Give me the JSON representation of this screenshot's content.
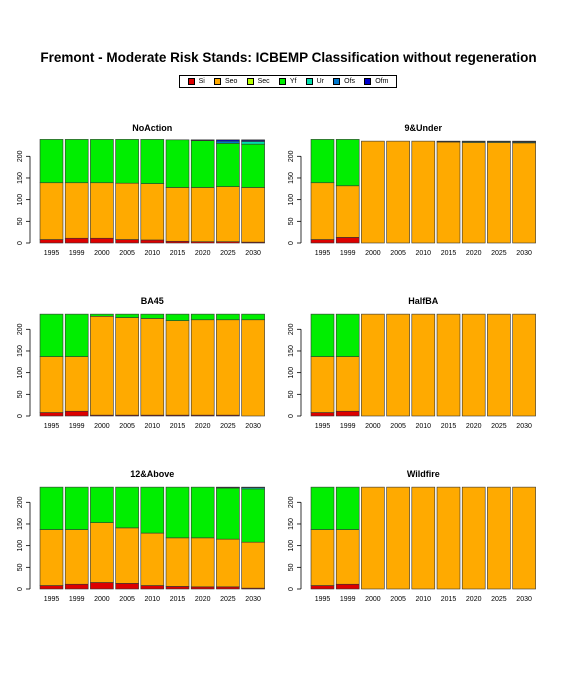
{
  "title": "Fremont  - Moderate Risk Stands: ICBEMP Classification without regeneration",
  "legend": [
    {
      "label": "Si",
      "color": "#dd0000"
    },
    {
      "label": "Seo",
      "color": "#ffaa00"
    },
    {
      "label": "Sec",
      "color": "#b6ff00"
    },
    {
      "label": "Yf",
      "color": "#00ee00"
    },
    {
      "label": "Ur",
      "color": "#00ddaa"
    },
    {
      "label": "Ofs",
      "color": "#0077cc"
    },
    {
      "label": "Ofm",
      "color": "#0000cc"
    }
  ],
  "chart_data": [
    {
      "type": "bar",
      "stacked": true,
      "title": "NoAction",
      "categories": [
        "1995",
        "1999",
        "2000",
        "2005",
        "2010",
        "2015",
        "2020",
        "2025",
        "2030"
      ],
      "ylim": [
        0,
        235
      ],
      "yticks": [
        0,
        50,
        100,
        150,
        200
      ],
      "series": [
        {
          "name": "Si",
          "values": [
            8,
            11,
            11,
            8,
            7,
            4,
            3,
            3,
            2
          ]
        },
        {
          "name": "Seo",
          "values": [
            131,
            128,
            128,
            130,
            130,
            124,
            125,
            127,
            126
          ]
        },
        {
          "name": "Sec",
          "values": [
            0,
            0,
            0,
            0,
            0,
            0,
            0,
            0,
            0
          ]
        },
        {
          "name": "Yf",
          "values": [
            100,
            100,
            100,
            101,
            102,
            110,
            108,
            100,
            100
          ]
        },
        {
          "name": "Ur",
          "values": [
            0,
            0,
            0,
            0,
            0,
            0,
            0,
            0,
            6
          ]
        },
        {
          "name": "Ofs",
          "values": [
            0,
            0,
            0,
            0,
            0,
            0,
            1,
            5,
            2
          ]
        },
        {
          "name": "Ofm",
          "values": [
            0,
            0,
            0,
            0,
            0,
            0,
            1,
            3,
            2
          ]
        }
      ]
    },
    {
      "type": "bar",
      "stacked": true,
      "title": "9&Under",
      "categories": [
        "1995",
        "1999",
        "2000",
        "2005",
        "2010",
        "2015",
        "2020",
        "2025",
        "2030"
      ],
      "ylim": [
        0,
        235
      ],
      "yticks": [
        0,
        50,
        100,
        150,
        200
      ],
      "series": [
        {
          "name": "Si",
          "values": [
            8,
            13,
            0,
            0,
            0,
            0,
            0,
            0,
            0
          ]
        },
        {
          "name": "Seo",
          "values": [
            131,
            119,
            235,
            235,
            235,
            233,
            232,
            232,
            231
          ]
        },
        {
          "name": "Sec",
          "values": [
            0,
            0,
            0,
            0,
            0,
            0,
            0,
            0,
            0
          ]
        },
        {
          "name": "Yf",
          "values": [
            100,
            107,
            0,
            0,
            0,
            0,
            0,
            0,
            0
          ]
        },
        {
          "name": "Ur",
          "values": [
            0,
            0,
            0,
            0,
            0,
            1,
            2,
            2,
            2
          ]
        },
        {
          "name": "Ofs",
          "values": [
            0,
            0,
            0,
            0,
            0,
            1,
            1,
            1,
            1
          ]
        },
        {
          "name": "Ofm",
          "values": [
            0,
            0,
            0,
            0,
            0,
            0,
            0,
            0,
            1
          ]
        }
      ]
    },
    {
      "type": "bar",
      "stacked": true,
      "title": "BA45",
      "categories": [
        "1995",
        "1999",
        "2000",
        "2005",
        "2010",
        "2015",
        "2020",
        "2025",
        "2030"
      ],
      "ylim": [
        0,
        235
      ],
      "yticks": [
        0,
        50,
        100,
        150,
        200
      ],
      "series": [
        {
          "name": "Si",
          "values": [
            8,
            11,
            2,
            2,
            2,
            2,
            2,
            2,
            0
          ]
        },
        {
          "name": "Seo",
          "values": [
            129,
            126,
            228,
            225,
            223,
            218,
            220,
            220,
            222
          ]
        },
        {
          "name": "Sec",
          "values": [
            0,
            0,
            0,
            0,
            0,
            0,
            0,
            0,
            0
          ]
        },
        {
          "name": "Yf",
          "values": [
            98,
            98,
            5,
            8,
            10,
            15,
            13,
            13,
            13
          ]
        },
        {
          "name": "Ur",
          "values": [
            0,
            0,
            0,
            0,
            0,
            0,
            0,
            0,
            0
          ]
        },
        {
          "name": "Ofs",
          "values": [
            0,
            0,
            0,
            0,
            0,
            0,
            0,
            0,
            0
          ]
        },
        {
          "name": "Ofm",
          "values": [
            0,
            0,
            0,
            0,
            0,
            0,
            0,
            0,
            0
          ]
        }
      ]
    },
    {
      "type": "bar",
      "stacked": true,
      "title": "HalfBA",
      "categories": [
        "1995",
        "1999",
        "2000",
        "2005",
        "2010",
        "2015",
        "2020",
        "2025",
        "2030"
      ],
      "ylim": [
        0,
        235
      ],
      "yticks": [
        0,
        50,
        100,
        150,
        200
      ],
      "series": [
        {
          "name": "Si",
          "values": [
            8,
            11,
            0,
            0,
            0,
            0,
            0,
            0,
            0
          ]
        },
        {
          "name": "Seo",
          "values": [
            129,
            126,
            235,
            235,
            235,
            235,
            235,
            235,
            235
          ]
        },
        {
          "name": "Sec",
          "values": [
            0,
            0,
            0,
            0,
            0,
            0,
            0,
            0,
            0
          ]
        },
        {
          "name": "Yf",
          "values": [
            98,
            98,
            0,
            0,
            0,
            0,
            0,
            0,
            0
          ]
        },
        {
          "name": "Ur",
          "values": [
            0,
            0,
            0,
            0,
            0,
            0,
            0,
            0,
            0
          ]
        },
        {
          "name": "Ofs",
          "values": [
            0,
            0,
            0,
            0,
            0,
            0,
            0,
            0,
            0
          ]
        },
        {
          "name": "Ofm",
          "values": [
            0,
            0,
            0,
            0,
            0,
            0,
            0,
            0,
            0
          ]
        }
      ]
    },
    {
      "type": "bar",
      "stacked": true,
      "title": "12&Above",
      "categories": [
        "1995",
        "1999",
        "2000",
        "2005",
        "2010",
        "2015",
        "2020",
        "2025",
        "2030"
      ],
      "ylim": [
        0,
        235
      ],
      "yticks": [
        0,
        50,
        100,
        150,
        200
      ],
      "series": [
        {
          "name": "Si",
          "values": [
            8,
            11,
            15,
            13,
            8,
            6,
            5,
            5,
            2
          ]
        },
        {
          "name": "Seo",
          "values": [
            129,
            126,
            138,
            128,
            121,
            112,
            113,
            110,
            106
          ]
        },
        {
          "name": "Sec",
          "values": [
            0,
            0,
            0,
            0,
            0,
            0,
            0,
            0,
            0
          ]
        },
        {
          "name": "Yf",
          "values": [
            98,
            98,
            82,
            94,
            106,
            117,
            117,
            118,
            123
          ]
        },
        {
          "name": "Ur",
          "values": [
            0,
            0,
            0,
            0,
            0,
            0,
            0,
            1,
            3
          ]
        },
        {
          "name": "Ofs",
          "values": [
            0,
            0,
            0,
            0,
            0,
            0,
            0,
            1,
            1
          ]
        },
        {
          "name": "Ofm",
          "values": [
            0,
            0,
            0,
            0,
            0,
            0,
            0,
            0,
            0
          ]
        }
      ]
    },
    {
      "type": "bar",
      "stacked": true,
      "title": "Wildfire",
      "categories": [
        "1995",
        "1999",
        "2000",
        "2005",
        "2010",
        "2015",
        "2020",
        "2025",
        "2030"
      ],
      "ylim": [
        0,
        235
      ],
      "yticks": [
        0,
        50,
        100,
        150,
        200
      ],
      "series": [
        {
          "name": "Si",
          "values": [
            8,
            11,
            0,
            0,
            0,
            0,
            0,
            0,
            0
          ]
        },
        {
          "name": "Seo",
          "values": [
            129,
            126,
            235,
            235,
            235,
            235,
            235,
            235,
            235
          ]
        },
        {
          "name": "Sec",
          "values": [
            0,
            0,
            0,
            0,
            0,
            0,
            0,
            0,
            0
          ]
        },
        {
          "name": "Yf",
          "values": [
            98,
            98,
            0,
            0,
            0,
            0,
            0,
            0,
            0
          ]
        },
        {
          "name": "Ur",
          "values": [
            0,
            0,
            0,
            0,
            0,
            0,
            0,
            0,
            0
          ]
        },
        {
          "name": "Ofs",
          "values": [
            0,
            0,
            0,
            0,
            0,
            0,
            0,
            0,
            0
          ]
        },
        {
          "name": "Ofm",
          "values": [
            0,
            0,
            0,
            0,
            0,
            0,
            0,
            0,
            0
          ]
        }
      ]
    }
  ]
}
